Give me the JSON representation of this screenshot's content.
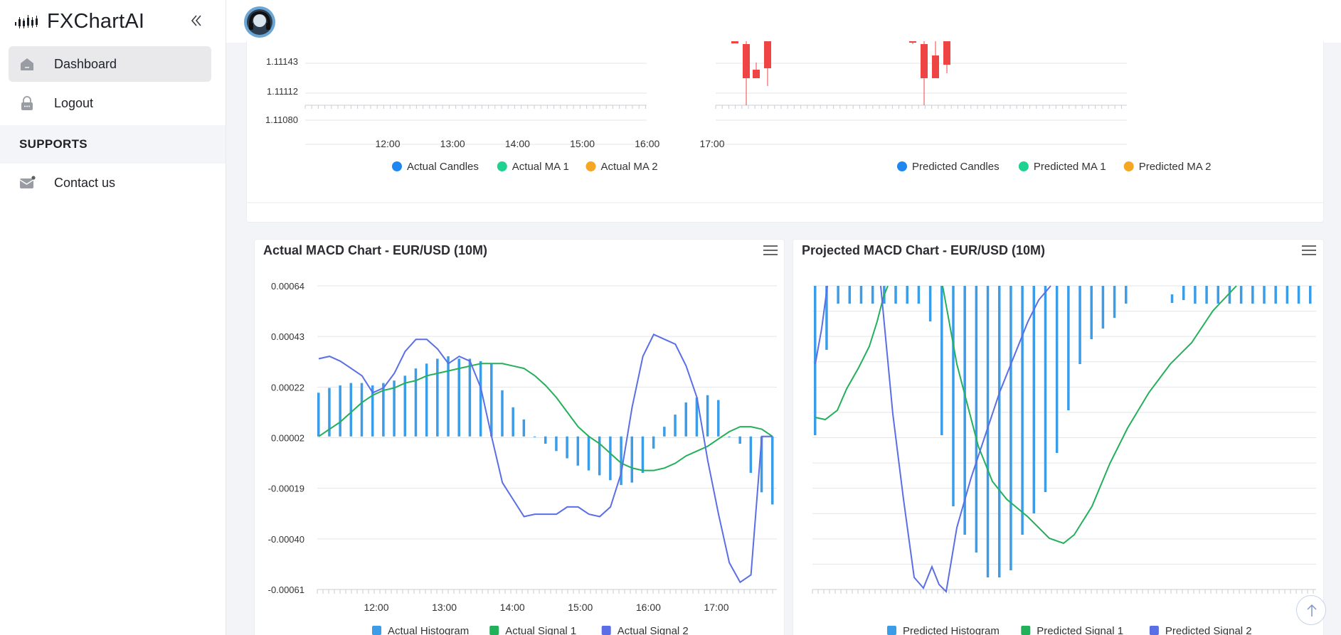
{
  "app": {
    "name": "FXChartAI"
  },
  "sidebar": {
    "items": [
      {
        "label": "Dashboard",
        "icon": "home-icon",
        "active": true
      },
      {
        "label": "Logout",
        "icon": "lock-icon",
        "active": false
      }
    ],
    "section_title": "SUPPORTS",
    "support_items": [
      {
        "label": "Contact us",
        "icon": "mail-icon"
      }
    ]
  },
  "colors": {
    "bull": "#22c55e",
    "bear": "#ef4444",
    "histogram": "#3b9de8",
    "signal1": "#22b05a",
    "signal2": "#5a6ee6",
    "legend_blue": "#1e88f0",
    "legend_green": "#20d28f",
    "legend_orange": "#f5a623"
  },
  "candle_legends": {
    "actual": [
      "Actual Candles",
      "Actual MA 1",
      "Actual MA 2"
    ],
    "predicted": [
      "Predicted Candles",
      "Predicted MA 1",
      "Predicted MA 2"
    ]
  },
  "candle_chart": {
    "y_ticks": [
      "1.11143",
      "1.11112",
      "1.11080"
    ],
    "x_ticks": [
      "12:00",
      "13:00",
      "14:00",
      "15:00",
      "16:00",
      "17:00"
    ]
  },
  "macd_actual": {
    "title": "Actual MACD Chart - EUR/USD (10M)",
    "y_ticks": [
      "0.00064",
      "0.00043",
      "0.00022",
      "0.00002",
      "-0.00019",
      "-0.00040",
      "-0.00061"
    ],
    "x_ticks": [
      "12:00",
      "13:00",
      "14:00",
      "15:00",
      "16:00",
      "17:00"
    ],
    "legend": [
      "Actual Histogram",
      "Actual Signal 1",
      "Actual Signal 2"
    ]
  },
  "macd_projected": {
    "title": "Projected MACD Chart - EUR/USD (10M)",
    "legend": [
      "Predicted Histogram",
      "Predicted Signal 1",
      "Predicted Signal 2"
    ]
  },
  "chart_data": [
    {
      "type": "bar",
      "title": "Actual MACD Chart - EUR/USD (10M)",
      "ylim": [
        -0.00061,
        0.00064
      ],
      "x_range": [
        "11:00",
        "17:50"
      ],
      "series": [
        {
          "name": "Actual Histogram",
          "type": "bar",
          "values": [
            0.00018,
            0.0002,
            0.00021,
            0.00022,
            0.00022,
            0.00021,
            0.00022,
            0.00023,
            0.00025,
            0.00028,
            0.0003,
            0.00032,
            0.00033,
            0.00032,
            0.00032,
            0.00031,
            0.0003,
            0.00019,
            0.00012,
            7e-05,
            0.0,
            -3e-05,
            -6e-05,
            -9e-05,
            -0.00012,
            -0.00014,
            -0.00016,
            -0.00018,
            -0.0002,
            -0.00019,
            -0.00015,
            -5e-05,
            4e-05,
            9e-05,
            0.00014,
            0.00016,
            0.00017,
            0.00015,
            0.0,
            -3e-05,
            -0.00015,
            -0.00023,
            -0.00028
          ]
        },
        {
          "name": "Actual Signal 1",
          "type": "line",
          "values": [
            0.0,
            3e-05,
            6e-05,
            0.0001,
            0.00014,
            0.00017,
            0.00019,
            0.0002,
            0.00022,
            0.00023,
            0.00025,
            0.00026,
            0.00027,
            0.00028,
            0.00029,
            0.0003,
            0.0003,
            0.0003,
            0.00029,
            0.00028,
            0.00025,
            0.00021,
            0.00016,
            0.0001,
            4e-05,
            0.0,
            -3e-05,
            -7e-05,
            -0.00011,
            -0.00013,
            -0.00014,
            -0.00014,
            -0.00013,
            -0.00011,
            -8e-05,
            -6e-05,
            -4e-05,
            -1e-05,
            2e-05,
            4e-05,
            4e-05,
            3e-05,
            0.0
          ]
        },
        {
          "name": "Actual Signal 2",
          "type": "line",
          "values": [
            0.00032,
            0.00033,
            0.00031,
            0.00028,
            0.00025,
            0.00018,
            0.0002,
            0.00026,
            0.00035,
            0.0004,
            0.0004,
            0.00036,
            0.0003,
            0.00033,
            0.00031,
            0.0002,
            0.0,
            -0.00019,
            -0.00026,
            -0.00033,
            -0.00032,
            -0.00032,
            -0.00032,
            -0.00029,
            -0.00029,
            -0.00032,
            -0.00033,
            -0.00029,
            -0.00015,
            0.00012,
            0.00033,
            0.00042,
            0.0004,
            0.00038,
            0.00029,
            0.00016,
            -0.0001,
            -0.00032,
            -0.00052,
            -0.0006,
            -0.00057,
            0.0,
            0.0
          ]
        }
      ]
    },
    {
      "type": "bar",
      "title": "Projected MACD Chart - EUR/USD (10M)",
      "series": [
        {
          "name": "Predicted Histogram",
          "type": "bar"
        },
        {
          "name": "Predicted Signal 1",
          "type": "line"
        },
        {
          "name": "Predicted Signal 2",
          "type": "line"
        }
      ]
    }
  ]
}
